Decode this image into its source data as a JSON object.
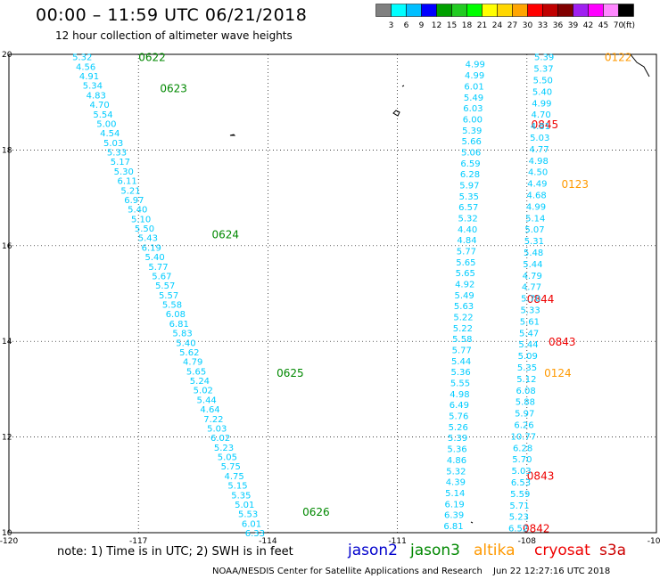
{
  "header": {
    "title": "00:00 – 11:59 UTC 06/21/2018",
    "subtitle": "12 hour collection of altimeter wave heights"
  },
  "colorbar": {
    "colors": [
      "#808080",
      "#00ffff",
      "#00bfff",
      "#0000ff",
      "#00a000",
      "#22cc22",
      "#00ff00",
      "#ffff00",
      "#ffd700",
      "#ffa500",
      "#ff0000",
      "#c00000",
      "#800000",
      "#a020f0",
      "#ff00ff",
      "#ff88ff",
      "#000000"
    ],
    "ticks": [
      "3",
      "6",
      "9",
      "12",
      "15",
      "18",
      "21",
      "24",
      "27",
      "30",
      "33",
      "36",
      "39",
      "42",
      "45",
      "70"
    ],
    "unit": "(ft)"
  },
  "footer": {
    "note": "note: 1) Time is in UTC; 2) SWH is in feet",
    "credit": "NOAA/NESDIS Center for Satellite Applications and Research",
    "timestamp": "Jun 22 12:27:16 UTC 2018"
  },
  "legend": [
    {
      "name": "jason2",
      "color": "#0000cc"
    },
    {
      "name": "jason3",
      "color": "#008800"
    },
    {
      "name": "altika",
      "color": "#ff9900"
    },
    {
      "name": "cryosat",
      "color": "#ee0000"
    },
    {
      "name": "s3a",
      "color": "#cc0000"
    }
  ],
  "chart_data": {
    "type": "scatter",
    "xlim": [
      -120,
      -105
    ],
    "ylim": [
      10,
      20
    ],
    "x_ticks": [
      "-120",
      "-117",
      "-114",
      "-111",
      "-108",
      "-105"
    ],
    "y_ticks": [
      "20",
      "18",
      "16",
      "14",
      "12",
      "10"
    ],
    "x_tick_values": [
      -120,
      -117,
      -114,
      -111,
      -108,
      -105
    ],
    "y_tick_values": [
      20,
      18,
      16,
      14,
      12,
      10
    ],
    "grid": true,
    "value_color": "#00ccff",
    "tracks": [
      {
        "satellite": "jason3",
        "color": "#008800",
        "lon_start": -118.3,
        "lat_start": 19.95,
        "lon_end": -114.3,
        "lat_end": 10.0,
        "values": [
          "5.32",
          "4.56",
          "4.91",
          "5.34",
          "4.83",
          "4.70",
          "5.54",
          "5.00",
          "4.54",
          "5.03",
          "5.33",
          "5.17",
          "5.30",
          "6.11",
          "5.21",
          "6.97",
          "5.40",
          "5.10",
          "5.50",
          "5.43",
          "6.19",
          "5.40",
          "5.77",
          "5.67",
          "5.57",
          "5.57",
          "5.58",
          "6.08",
          "6.81",
          "5.83",
          "5.40",
          "5.62",
          "4.79",
          "5.65",
          "5.24",
          "5.02",
          "5.44",
          "4.64",
          "7.22",
          "5.03",
          "6.02",
          "5.23",
          "5.05",
          "5.75",
          "4.75",
          "5.15",
          "5.35",
          "5.01",
          "5.53",
          "6.01",
          "6.33"
        ],
        "times": [
          {
            "label": "0622",
            "lon": -117.0,
            "lat": 19.95
          },
          {
            "label": "0623",
            "lon": -116.5,
            "lat": 19.3
          },
          {
            "label": "0624",
            "lon": -115.3,
            "lat": 16.25
          },
          {
            "label": "0625",
            "lon": -113.8,
            "lat": 13.35
          },
          {
            "label": "0626",
            "lon": -113.2,
            "lat": 10.45
          }
        ]
      },
      {
        "satellite": "cryosat",
        "color": "#ee0000",
        "lon_start": -109.2,
        "lat_start": 19.8,
        "lon_end": -109.7,
        "lat_end": 10.15,
        "values": [
          "4.99",
          "4.99",
          "6.01",
          "5.49",
          "6.03",
          "6.00",
          "5.39",
          "5.66",
          "5.06",
          "6.59",
          "6.28",
          "5.97",
          "5.35",
          "6.57",
          "5.32",
          "4.40",
          "4.84",
          "5.77",
          "5.65",
          "5.65",
          "4.92",
          "5.49",
          "5.63",
          "5.22",
          "5.22",
          "5.58",
          "5.77",
          "5.44",
          "5.36",
          "5.55",
          "4.98",
          "6.49",
          "5.76",
          "5.26",
          "5.39",
          "5.36",
          "4.86",
          "5.32",
          "4.39",
          "5.14",
          "6.19",
          "6.39",
          "6.81"
        ],
        "times": [
          {
            "label": "0845",
            "lon": -107.9,
            "lat": 18.55
          },
          {
            "label": "0844",
            "lon": -108.0,
            "lat": 14.9
          },
          {
            "label": "0843",
            "lon": -107.5,
            "lat": 14.0
          },
          {
            "label": "0843",
            "lon": -108.0,
            "lat": 11.2
          },
          {
            "label": "0842",
            "lon": -108.1,
            "lat": 10.1
          }
        ]
      },
      {
        "satellite": "altika",
        "color": "#ff9900",
        "lon_start": -107.6,
        "lat_start": 19.95,
        "lon_end": -108.2,
        "lat_end": 10.1,
        "values": [
          "5.39",
          "5.37",
          "5.50",
          "5.40",
          "4.99",
          "4.70",
          "4.81",
          "5.03",
          "4.77",
          "4.98",
          "4.50",
          "4.49",
          "4.68",
          "4.99",
          "5.14",
          "5.07",
          "5.31",
          "5.48",
          "5.44",
          "4.79",
          "4.77",
          "5.70",
          "5.33",
          "5.61",
          "5.47",
          "5.44",
          "5.09",
          "5.35",
          "5.12",
          "6.08",
          "5.88",
          "5.97",
          "6.26",
          "10.77",
          "6.28",
          "5.70",
          "5.03",
          "6.53",
          "5.59",
          "5.71",
          "5.23",
          "6.52"
        ],
        "times": [
          {
            "label": "0122",
            "lon": -106.2,
            "lat": 19.95
          },
          {
            "label": "0123",
            "lon": -107.2,
            "lat": 17.3
          },
          {
            "label": "0124",
            "lon": -107.6,
            "lat": 13.35
          }
        ]
      }
    ]
  }
}
